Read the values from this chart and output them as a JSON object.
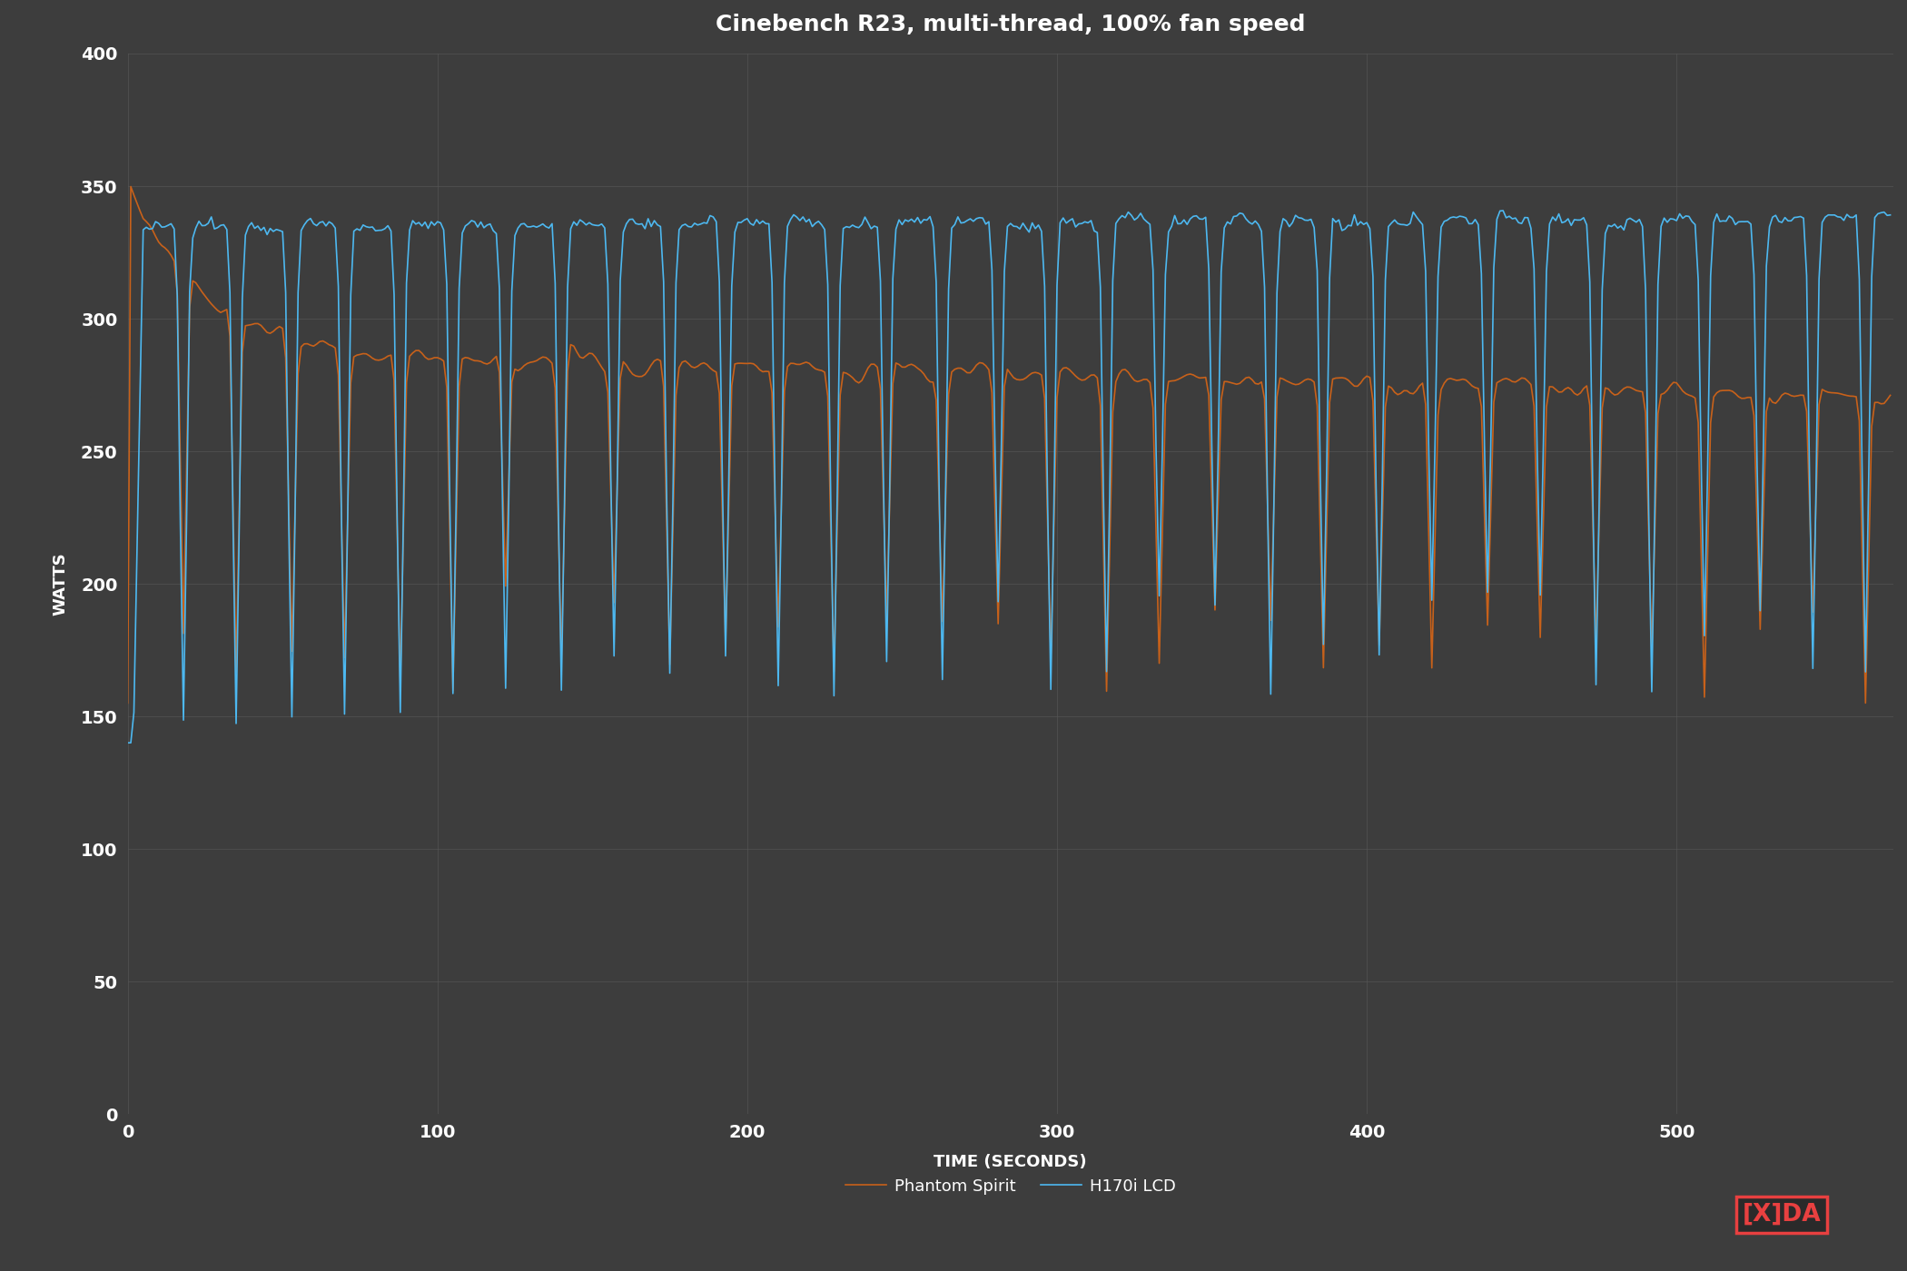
{
  "title": "Cinebench R23, multi-thread, 100% fan speed",
  "xlabel": "TIME (SECONDS)",
  "ylabel": "WATTS",
  "xlim": [
    0,
    570
  ],
  "ylim": [
    0,
    400
  ],
  "yticks": [
    0,
    50,
    100,
    150,
    200,
    250,
    300,
    350,
    400
  ],
  "xticks": [
    0,
    100,
    200,
    300,
    400,
    500
  ],
  "background_color": "#3d3d3d",
  "grid_color": "#575757",
  "line_color_blue": "#4db8f0",
  "line_color_orange": "#c8611a",
  "legend_labels": [
    "H170i LCD",
    "Phantom Spirit"
  ],
  "title_fontsize": 18,
  "label_fontsize": 13,
  "tick_fontsize": 14,
  "legend_fontsize": 13,
  "dip_times": [
    18,
    35,
    53,
    70,
    88,
    105,
    122,
    140,
    157,
    175,
    193,
    210,
    228,
    245,
    263,
    281,
    298,
    316,
    333,
    351,
    369,
    386,
    404,
    421,
    439,
    456,
    474,
    492,
    509,
    527,
    544,
    561
  ],
  "blue_base": 335,
  "blue_noise": 3,
  "orange_start": 350,
  "orange_end": 288,
  "orange_noise": 4
}
